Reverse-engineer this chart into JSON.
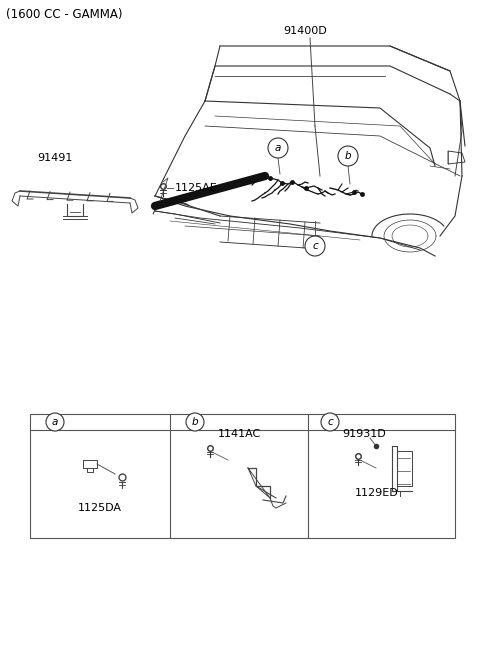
{
  "title": "(1600 CC - GAMMA)",
  "bg_color": "#ffffff",
  "text_color": "#000000",
  "title_fontsize": 8.5,
  "label_91400D": "91400D",
  "label_91491": "91491",
  "label_1125AE": "1125AE",
  "sub_1125DA": "1125DA",
  "sub_1141AC": "1141AC",
  "sub_91931D": "91931D",
  "sub_1129ED": "1129ED",
  "car_color": "#333333",
  "line_color": "#444444",
  "lw_car": 0.8,
  "lw_thin": 0.6
}
